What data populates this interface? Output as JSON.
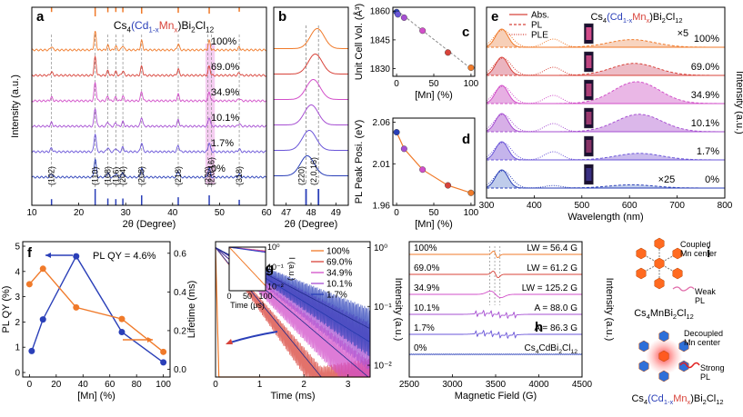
{
  "colors": {
    "orange": "#f07a2a",
    "red": "#d8433a",
    "magenta": "#d24fc9",
    "purple": "#a64fd2",
    "violet": "#6a55d8",
    "blue": "#2a3fb8",
    "gray": "#8a8a8a",
    "pink_band": "#f3c0ee"
  },
  "chart_data": [
    {
      "id": "a",
      "type": "line",
      "panel_label": "a",
      "title_parts": [
        "Cs",
        "4",
        "(Cd",
        "1-x",
        "Mn",
        "x",
        ")Bi",
        "2",
        "Cl",
        "12"
      ],
      "xlabel": "2θ (Degree)",
      "ylabel": "Intensity (a.u.)",
      "xlim": [
        10,
        60
      ],
      "xticks": [
        "10",
        "20",
        "30",
        "40",
        "50",
        "60"
      ],
      "series": [
        "100%",
        "69.0%",
        "34.9%",
        "10.1%",
        "1.7%",
        "0%"
      ],
      "peaks": [
        {
          "x": 14.2,
          "label": "(102)"
        },
        {
          "x": 23.5,
          "label": "(110)"
        },
        {
          "x": 26.2,
          "label": "(108)"
        },
        {
          "x": 27.9,
          "label": "(116)"
        },
        {
          "x": 29.4,
          "label": "(204)"
        },
        {
          "x": 33.4,
          "label": "(208)"
        },
        {
          "x": 41.2,
          "label": "(218)"
        },
        {
          "x": 47.5,
          "label": "(220)"
        },
        {
          "x": 48.3,
          "label": "(2,0,16)"
        },
        {
          "x": 54.2,
          "label": "(318)"
        }
      ],
      "highlight_range": [
        47,
        49
      ]
    },
    {
      "id": "b",
      "type": "line",
      "panel_label": "b",
      "xlabel": "2θ (Degree)",
      "xlim": [
        46.5,
        49.5
      ],
      "xticks": [
        "47",
        "48",
        "49"
      ],
      "reflections": [
        {
          "x": 47.8,
          "label": "(220)"
        },
        {
          "x": 48.3,
          "label": "(2,0,16)"
        }
      ]
    },
    {
      "id": "c",
      "type": "scatter",
      "panel_label": "c",
      "ylabel": "Unit Cell Vol. (Å³)",
      "xlabel": "[Mn] (%)",
      "x": [
        0,
        1.7,
        10.1,
        34.9,
        69.0,
        100
      ],
      "y": [
        1859.5,
        1858.3,
        1856.6,
        1849.8,
        1838.4,
        1830.5
      ],
      "xlim": [
        -5,
        105
      ],
      "ylim": [
        1826,
        1862
      ],
      "yticks": [
        "1830",
        "1845",
        "1860"
      ],
      "xticks": [
        "0",
        "50",
        "100"
      ],
      "fit": "linear (dashed)"
    },
    {
      "id": "d",
      "type": "line",
      "panel_label": "d",
      "ylabel": "PL Peak Posi. (eV)",
      "xlabel": "[Mn] (%)",
      "x": [
        0,
        10.1,
        34.9,
        69.0,
        100
      ],
      "y": [
        2.048,
        2.028,
        2.003,
        1.984,
        1.975
      ],
      "xlim": [
        -5,
        105
      ],
      "ylim": [
        1.96,
        2.065
      ],
      "yticks": [
        "1.96",
        "2.01",
        "2.06"
      ],
      "xticks": [
        "0",
        "50",
        "100"
      ]
    },
    {
      "id": "e",
      "type": "area",
      "panel_label": "e",
      "title_parts": [
        "Cs",
        "4",
        "(Cd",
        "1-x",
        "Mn",
        "x",
        ")Bi",
        "2",
        "Cl",
        "12"
      ],
      "xlabel": "Wavelength (nm)",
      "ylabel": "Intensity (a.u.)",
      "xlim": [
        300,
        800
      ],
      "xticks": [
        "300",
        "400",
        "500",
        "600",
        "700",
        "800"
      ],
      "legend": [
        "Abs.",
        "PL",
        "PLE"
      ],
      "series": [
        "100%",
        "69.0%",
        "34.9%",
        "10.1%",
        "1.7%",
        "0%"
      ],
      "annotations": [
        "×5",
        "×25"
      ],
      "pl_peak_nm": [
        605,
        610,
        615,
        620,
        620,
        605
      ],
      "pl_amp": [
        0.35,
        0.55,
        1.0,
        0.8,
        0.3,
        0.15
      ]
    },
    {
      "id": "f",
      "type": "line",
      "panel_label": "f",
      "xlabel": "[Mn] (%)",
      "ylabel_left": "PL QY (%)",
      "ylabel_right": "Lifetime (ms)",
      "x": [
        1.7,
        10.1,
        34.9,
        69.0,
        100
      ],
      "plqy": [
        0.85,
        2.1,
        4.6,
        1.6,
        0.4
      ],
      "x_life": [
        0,
        10.1,
        34.9,
        69.0,
        100
      ],
      "lifetime": [
        0.44,
        0.52,
        0.32,
        0.26,
        0.09
      ],
      "xlim": [
        -5,
        105
      ],
      "ylim_left": [
        0,
        5
      ],
      "ylim_right": [
        -0.04,
        0.66
      ],
      "xticks": [
        "0",
        "20",
        "40",
        "60",
        "80",
        "100"
      ],
      "yticks_left": [
        "0",
        "1",
        "2",
        "3",
        "4",
        "5"
      ],
      "yticks_right": [
        "0.0",
        "0.2",
        "0.4",
        "0.6"
      ],
      "annotation": "PL QY = 4.6%"
    },
    {
      "id": "g",
      "type": "line",
      "panel_label": "g",
      "xlabel": "Time (ms)",
      "ylabel": "Intensity (a.u.)",
      "xlim": [
        0,
        3.5
      ],
      "xticks": [
        "0",
        "1",
        "2",
        "3"
      ],
      "yticks": [
        "10⁻²",
        "10⁻¹",
        "10⁰"
      ],
      "legend": [
        "100%",
        "69.0%",
        "34.9%",
        "10.1%",
        "1.7%"
      ],
      "tau_ms": [
        0.015,
        0.45,
        0.65,
        0.9,
        1.05
      ],
      "inset": {
        "xlabel": "Time (μs)",
        "ylabel": "I (a.u.)",
        "xticks": [
          "0",
          "50",
          "100"
        ],
        "yticks": [
          "10⁻²",
          "10⁻¹",
          "10⁰"
        ]
      }
    },
    {
      "id": "h",
      "type": "line",
      "panel_label": "h",
      "xlabel": "Magnetic Field (G)",
      "ylabel": "Intensity (a.u.)",
      "xlim": [
        2500,
        4500
      ],
      "xticks": [
        "2500",
        "3000",
        "3500",
        "4000",
        "4500"
      ],
      "series": [
        {
          "name": "100%",
          "note": "LW = 56.4 G"
        },
        {
          "name": "69.0%",
          "note": "LW = 61.2 G"
        },
        {
          "name": "34.9%",
          "note": "LW = 125.2 G"
        },
        {
          "name": "10.1%",
          "note": "A = 88.0 G"
        },
        {
          "name": "1.7%",
          "note": "A = 86.3 G"
        },
        {
          "name": "0%",
          "note_parts": [
            "Cs",
            "4",
            "CdBi",
            "2",
            "Cl",
            "12"
          ]
        }
      ]
    }
  ],
  "panel_i": {
    "label": "i",
    "top_note": [
      "Coupled",
      "Mn center"
    ],
    "top_pl": [
      "Weak",
      "PL"
    ],
    "top_formula": [
      "Cs",
      "4",
      "MnBi",
      "2",
      "Cl",
      "12"
    ],
    "bottom_note": [
      "Decoupled",
      "Mn center"
    ],
    "bottom_pl": [
      "Strong",
      "PL"
    ],
    "bottom_formula": [
      "Cs",
      "4",
      "(Cd",
      "1-x",
      "Mn",
      "x",
      ")Bi",
      "2",
      "Cl",
      "12"
    ]
  }
}
